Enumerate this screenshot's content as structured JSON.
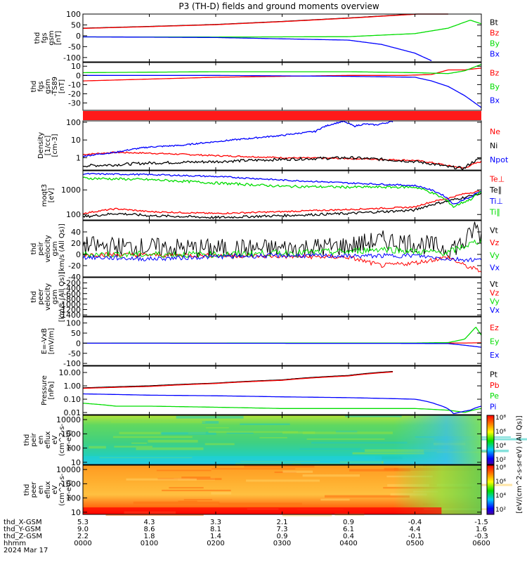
{
  "title": "P3 (TH-D) fields and ground moments overview",
  "colors": {
    "black": "#000000",
    "red": "#ff0000",
    "green": "#00dd00",
    "blue": "#0000ff"
  },
  "chart_data": [
    {
      "type": "line",
      "ylabel": [
        "thd",
        "fgs",
        "gsm",
        "[nT]"
      ],
      "ylim": [
        -120,
        100
      ],
      "yticks": [
        100,
        50,
        0,
        -50,
        -100
      ],
      "legend": [
        {
          "label": "Bt",
          "color": "black"
        },
        {
          "label": "Bz",
          "color": "red"
        },
        {
          "label": "By",
          "color": "green"
        },
        {
          "label": "Bx",
          "color": "blue"
        }
      ],
      "series": [
        {
          "name": "Bt",
          "color": "black",
          "x": [
            0,
            60,
            120,
            180,
            240,
            300,
            330
          ],
          "y": [
            35,
            43,
            52,
            66,
            82,
            100,
            115
          ]
        },
        {
          "name": "Bz",
          "color": "red",
          "x": [
            0,
            60,
            120,
            180,
            240,
            300,
            330
          ],
          "y": [
            34,
            42,
            51,
            65,
            81,
            99,
            114
          ]
        },
        {
          "name": "By",
          "color": "green",
          "x": [
            0,
            120,
            240,
            300,
            330,
            350,
            360
          ],
          "y": [
            -5,
            -6,
            -4,
            10,
            35,
            72,
            55
          ]
        },
        {
          "name": "Bx",
          "color": "blue",
          "x": [
            0,
            120,
            240,
            270,
            300,
            315
          ],
          "y": [
            -5,
            -8,
            -20,
            -40,
            -80,
            -115
          ]
        }
      ]
    },
    {
      "type": "line",
      "ylabel": [
        "thd",
        "fgs",
        "gsm",
        "-TS89",
        "[nT]"
      ],
      "ylim": [
        -38,
        14
      ],
      "yticks": [
        10,
        0,
        -10,
        -20,
        -30
      ],
      "legend": [
        {
          "label": "Bz",
          "color": "red"
        },
        {
          "label": "By",
          "color": "green"
        },
        {
          "label": "Bx",
          "color": "blue"
        }
      ],
      "series": [
        {
          "name": "Bz",
          "color": "red",
          "x": [
            0,
            60,
            120,
            180,
            240,
            290,
            315,
            330,
            345,
            360
          ],
          "y": [
            -6,
            -4,
            -2,
            -1,
            0,
            0,
            1,
            6,
            6,
            8
          ]
        },
        {
          "name": "By",
          "color": "green",
          "x": [
            0,
            120,
            240,
            300,
            330,
            345,
            360
          ],
          "y": [
            3,
            4,
            4,
            3,
            2,
            5,
            12
          ]
        },
        {
          "name": "Bx",
          "color": "blue",
          "x": [
            0,
            120,
            240,
            300,
            315,
            330,
            345,
            360
          ],
          "y": [
            0,
            0,
            -1,
            -2,
            -6,
            -12,
            -22,
            -35
          ]
        }
      ]
    },
    {
      "type": "line",
      "ylabel": [
        "Density",
        "[1/cc]",
        "[cm-3]"
      ],
      "log": true,
      "ylim": [
        0.2,
        120
      ],
      "yticks": [
        100,
        10,
        1
      ],
      "legend": [
        {
          "label": "Ne",
          "color": "red"
        },
        {
          "label": "Ni",
          "color": "black"
        },
        {
          "label": "Npot",
          "color": "blue"
        }
      ],
      "series": [
        {
          "name": "Ne",
          "color": "red",
          "x": [
            0,
            30,
            60,
            120,
            180,
            240,
            300,
            330,
            345,
            360
          ],
          "y": [
            1.5,
            2.0,
            1.8,
            1.3,
            1.0,
            0.9,
            0.7,
            0.35,
            0.25,
            0.6
          ]
        },
        {
          "name": "Ni",
          "color": "black",
          "x": [
            0,
            30,
            60,
            120,
            180,
            240,
            300,
            330,
            345,
            360
          ],
          "y": [
            0.35,
            0.4,
            0.5,
            0.6,
            0.8,
            1.0,
            0.6,
            0.3,
            0.25,
            0.9
          ]
        },
        {
          "name": "Npot",
          "color": "blue",
          "x": [
            0,
            30,
            60,
            90,
            120,
            150,
            180,
            210,
            235,
            245,
            255,
            265,
            280
          ],
          "y": [
            1.2,
            2.0,
            4,
            5,
            8,
            12,
            18,
            30,
            110,
            60,
            80,
            70,
            110
          ]
        }
      ]
    },
    {
      "type": "line",
      "ylabel": [
        "moqt3",
        "[eV]"
      ],
      "log": true,
      "ylim": [
        60,
        6000
      ],
      "yticks": [
        1000,
        100
      ],
      "legend": [
        {
          "label": "Te⊥",
          "color": "red"
        },
        {
          "label": "Te∥",
          "color": "black"
        },
        {
          "label": "Ti⊥",
          "color": "blue"
        },
        {
          "label": "Ti∥",
          "color": "green"
        }
      ],
      "series": [
        {
          "name": "Te⊥",
          "color": "red",
          "x": [
            0,
            30,
            60,
            120,
            180,
            240,
            300,
            330,
            345,
            360
          ],
          "y": [
            110,
            170,
            130,
            110,
            130,
            160,
            200,
            450,
            700,
            900
          ]
        },
        {
          "name": "Te∥",
          "color": "black",
          "x": [
            0,
            30,
            60,
            120,
            180,
            240,
            300,
            330,
            345,
            360
          ],
          "y": [
            80,
            110,
            90,
            75,
            90,
            110,
            150,
            350,
            500,
            700
          ]
        },
        {
          "name": "Ti⊥",
          "color": "blue",
          "x": [
            0,
            60,
            120,
            180,
            240,
            300,
            320,
            335,
            350,
            360
          ],
          "y": [
            4500,
            4200,
            3500,
            2500,
            1900,
            1500,
            800,
            250,
            500,
            900
          ]
        },
        {
          "name": "Ti∥",
          "color": "green",
          "x": [
            0,
            60,
            120,
            180,
            240,
            300,
            320,
            335,
            350,
            360
          ],
          "y": [
            3000,
            2600,
            1900,
            1400,
            1300,
            1300,
            600,
            200,
            400,
            800
          ]
        }
      ]
    },
    {
      "type": "line",
      "ylabel": [
        "thd",
        "peir",
        "velocity",
        "gsm",
        "[km/s (All Qs)]"
      ],
      "ylim": [
        -40,
        60
      ],
      "yticks": [
        40,
        20,
        0,
        -20,
        -40
      ],
      "legend": [
        {
          "label": "Vt",
          "color": "black"
        },
        {
          "label": "Vz",
          "color": "red"
        },
        {
          "label": "Vy",
          "color": "green"
        },
        {
          "label": "Vx",
          "color": "blue"
        }
      ],
      "series": [
        {
          "name": "Vt",
          "color": "black",
          "x": [
            0,
            60,
            120,
            180,
            240,
            270,
            300,
            330,
            345,
            355,
            360
          ],
          "y": [
            15,
            12,
            10,
            10,
            15,
            25,
            20,
            10,
            20,
            50,
            30
          ]
        },
        {
          "name": "Vz",
          "color": "red",
          "x": [
            0,
            120,
            240,
            270,
            300,
            330,
            345,
            360
          ],
          "y": [
            0,
            -2,
            -5,
            -20,
            -15,
            -5,
            -20,
            -30
          ]
        },
        {
          "name": "Vy",
          "color": "green",
          "x": [
            0,
            120,
            240,
            270,
            300,
            330,
            345,
            360
          ],
          "y": [
            0,
            0,
            5,
            10,
            5,
            3,
            15,
            25
          ]
        },
        {
          "name": "Vx",
          "color": "blue",
          "x": [
            0,
            60,
            120,
            180,
            240,
            300,
            330,
            360
          ],
          "y": [
            -5,
            -8,
            -4,
            -2,
            -3,
            -2,
            -8,
            -10
          ]
        }
      ]
    },
    {
      "type": "line",
      "ylabel": [
        "thd",
        "peer",
        "velocity",
        "gsm",
        "[km/s (All Qs)]"
      ],
      "ylim": [
        -1450,
        0
      ],
      "yticks": [
        -200,
        -400,
        -600,
        -800,
        -1000,
        -1200,
        -1400
      ],
      "legend": [
        {
          "label": "Vt",
          "color": "black"
        },
        {
          "label": "Vz",
          "color": "red"
        },
        {
          "label": "Vy",
          "color": "green"
        },
        {
          "label": "Vx",
          "color": "blue"
        }
      ],
      "series": []
    },
    {
      "type": "line",
      "ylabel": [
        "E=-VxB",
        "[mV/m]"
      ],
      "ylim": [
        -110,
        130
      ],
      "yticks": [
        100,
        50,
        0,
        -50,
        -100
      ],
      "legend": [
        {
          "label": "Ez",
          "color": "red"
        },
        {
          "label": "Ey",
          "color": "green"
        },
        {
          "label": "Ex",
          "color": "blue"
        }
      ],
      "series": [
        {
          "name": "Ez",
          "color": "red",
          "x": [
            0,
            300,
            345,
            360
          ],
          "y": [
            0,
            0,
            1,
            2
          ]
        },
        {
          "name": "Ey",
          "color": "green",
          "x": [
            0,
            300,
            330,
            345,
            355,
            360
          ],
          "y": [
            0,
            1,
            3,
            20,
            80,
            40
          ]
        },
        {
          "name": "Ex",
          "color": "blue",
          "x": [
            0,
            300,
            330,
            345,
            360
          ],
          "y": [
            0,
            -1,
            -2,
            -10,
            -20
          ]
        }
      ]
    },
    {
      "type": "line",
      "ylabel": [
        "Pressure",
        "[nPa]"
      ],
      "log": true,
      "ylim": [
        0.007,
        30
      ],
      "yticks": [
        10.0,
        1.0,
        0.1,
        0.01
      ],
      "ytick_labels": [
        "10.00",
        "1.00",
        "0.10",
        "0.01"
      ],
      "legend": [
        {
          "label": "Pt",
          "color": "black"
        },
        {
          "label": "Pb",
          "color": "red"
        },
        {
          "label": "Pe",
          "color": "green"
        },
        {
          "label": "Pi",
          "color": "blue"
        }
      ],
      "series": [
        {
          "name": "Pt",
          "color": "black",
          "x": [
            0,
            60,
            120,
            180,
            240,
            280
          ],
          "y": [
            0.7,
            1.0,
            1.6,
            2.8,
            6,
            12
          ]
        },
        {
          "name": "Pb",
          "color": "red",
          "x": [
            0,
            60,
            120,
            180,
            240,
            280
          ],
          "y": [
            0.65,
            0.9,
            1.5,
            2.6,
            5.5,
            11
          ]
        },
        {
          "name": "Pe",
          "color": "green",
          "x": [
            0,
            30,
            60,
            120,
            180,
            240,
            300,
            330,
            345,
            360
          ],
          "y": [
            0.05,
            0.03,
            0.03,
            0.025,
            0.02,
            0.02,
            0.02,
            0.015,
            0.01,
            0.02
          ]
        },
        {
          "name": "Pi",
          "color": "blue",
          "x": [
            0,
            60,
            120,
            180,
            240,
            300,
            320,
            335,
            350,
            360
          ],
          "y": [
            0.25,
            0.2,
            0.18,
            0.15,
            0.13,
            0.1,
            0.04,
            0.008,
            0.015,
            0.03
          ]
        }
      ]
    },
    {
      "type": "heatmap",
      "ylabel": [
        "thd",
        "peir",
        "en",
        "eflux",
        "eV",
        "(cm^2-s-",
        "sr-eV)"
      ],
      "log": true,
      "ylim": [
        7,
        20000
      ],
      "yticks": [
        10000,
        1000,
        100,
        10
      ]
    },
    {
      "type": "heatmap",
      "ylabel": [
        "thd",
        "peer",
        "en",
        "eflux",
        "eV",
        "(cm^2-s-",
        "sr-eV)"
      ],
      "log": true,
      "ylim": [
        7,
        20000
      ],
      "yticks": [
        10000,
        1000,
        100,
        10
      ]
    }
  ],
  "colorbar": {
    "unit_label": "[eV/(cm^2-s-sr-eV) (All Qs)]",
    "ticks_top": [
      "10⁸",
      "10⁶",
      "10⁴",
      "10²"
    ],
    "ticks_bottom": [
      "10⁸",
      "10⁶",
      "10⁴",
      "10²"
    ]
  },
  "x_axis": {
    "rows": [
      {
        "label": "thd_X-GSM",
        "values": [
          "5.3",
          "4.3",
          "3.3",
          "2.1",
          "0.9",
          "-0.4",
          "-1.5"
        ]
      },
      {
        "label": "thd_Y-GSM",
        "values": [
          "9.0",
          "8.6",
          "8.1",
          "7.3",
          "6.1",
          "4.4",
          "1.6"
        ]
      },
      {
        "label": "thd_Z-GSM",
        "values": [
          "2.2",
          "1.8",
          "1.4",
          "0.9",
          "0.4",
          "-0.1",
          "-0.3"
        ]
      },
      {
        "label": "hhmm",
        "values": [
          "0000",
          "0100",
          "0200",
          "0300",
          "0400",
          "0500",
          "0600"
        ]
      }
    ],
    "date": "2024 Mar 17"
  }
}
